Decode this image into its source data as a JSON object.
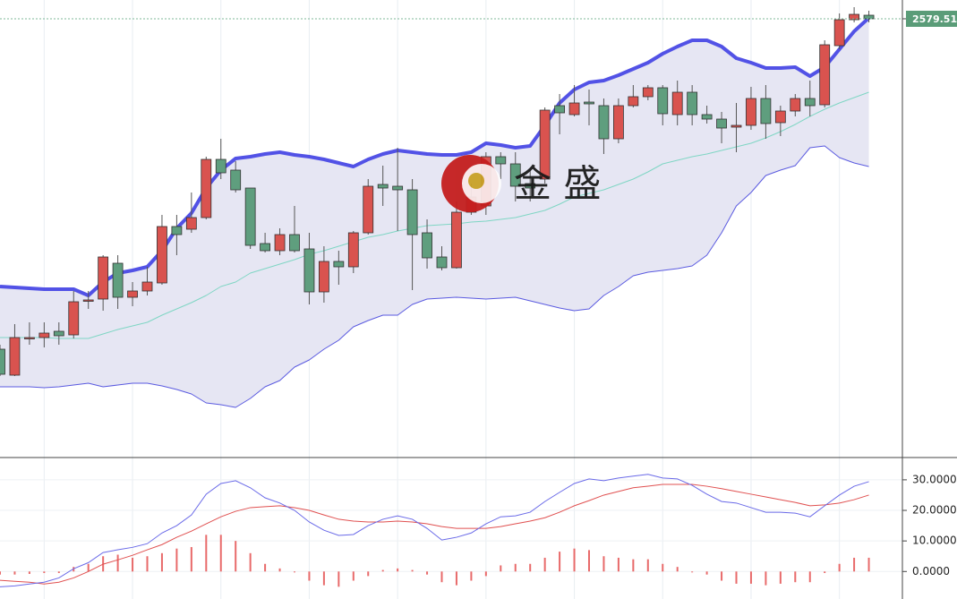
{
  "chart_data": [
    {
      "type": "candlestick",
      "open": [
        2395,
        2380.5,
        2401,
        2401.5,
        2405,
        2403,
        2422,
        2423,
        2443,
        2424,
        2427.5,
        2432,
        2463.5,
        2462,
        2468.5,
        2501,
        2495,
        2485,
        2454,
        2450,
        2459,
        2451,
        2427,
        2444,
        2441,
        2460,
        2487,
        2486,
        2484,
        2460,
        2446.5,
        2440.5,
        2471.5,
        2475,
        2502.5,
        2498.5,
        2487.5,
        2490,
        2531,
        2526,
        2533,
        2531,
        2512.5,
        2531,
        2536,
        2541,
        2526,
        2538.5,
        2526,
        2523.5,
        2519,
        2520,
        2535,
        2521.5,
        2528,
        2535,
        2531.5,
        2564.5,
        2579,
        2581.5
      ],
      "high": [
        2397.5,
        2409,
        2410,
        2410,
        2410,
        2427.5,
        2427.5,
        2447.5,
        2447.5,
        2432.5,
        2441,
        2470,
        2470,
        2482.5,
        2502.5,
        2512.5,
        2500,
        2485,
        2460,
        2462.5,
        2475,
        2460,
        2452.5,
        2450,
        2461,
        2490,
        2497.5,
        2507.5,
        2490,
        2467.5,
        2452.5,
        2477.5,
        2487.5,
        2505,
        2505,
        2505,
        2495,
        2530,
        2537.5,
        2542.5,
        2540,
        2535,
        2535,
        2542.5,
        2542.5,
        2542.5,
        2545,
        2542.5,
        2531,
        2527.5,
        2532.5,
        2541.5,
        2542.5,
        2531,
        2537.5,
        2545,
        2567.5,
        2582.5,
        2586,
        2584
      ],
      "low": [
        2380,
        2380,
        2397.5,
        2396,
        2397.5,
        2401,
        2417.5,
        2416.5,
        2417.5,
        2419,
        2425,
        2431,
        2447.5,
        2460,
        2467.5,
        2490,
        2482.5,
        2451,
        2449,
        2447.5,
        2449,
        2420,
        2421,
        2431,
        2437.5,
        2459,
        2475,
        2461,
        2428,
        2440,
        2439,
        2440,
        2470,
        2470,
        2490,
        2477.5,
        2477.5,
        2487.5,
        2515,
        2525,
        2520,
        2504,
        2510,
        2530,
        2534,
        2520,
        2520,
        2520,
        2521,
        2510,
        2505,
        2517.5,
        2512.5,
        2514,
        2525,
        2525,
        2530,
        2562.5,
        2577.5,
        2577.5
      ],
      "close": [
        2381,
        2401.5,
        2401.5,
        2404,
        2402.5,
        2421.5,
        2422.5,
        2446.5,
        2424,
        2427.5,
        2432.5,
        2463.5,
        2459,
        2468.5,
        2501,
        2493.5,
        2484,
        2453,
        2450,
        2459,
        2450,
        2427,
        2444,
        2441,
        2460,
        2486,
        2485,
        2484,
        2459,
        2446,
        2440.5,
        2471.5,
        2480,
        2502.5,
        2498.5,
        2486,
        2485,
        2528.5,
        2527,
        2532.5,
        2532,
        2512.5,
        2531,
        2536,
        2541,
        2526.5,
        2538.5,
        2526,
        2523.5,
        2518.5,
        2520,
        2535,
        2521,
        2528,
        2535,
        2531,
        2565,
        2579,
        2582,
        2579.51
      ],
      "up_color": "#d9534f",
      "down_color": "#5f9e7e",
      "bands": {
        "upper": {
          "color": "#5252e6",
          "values": [
            2430,
            2429.5,
            2429,
            2428.5,
            2428.5,
            2428.5,
            2425,
            2432.5,
            2437.5,
            2439,
            2441,
            2450,
            2462.5,
            2471,
            2485,
            2495,
            2501.5,
            2502.5,
            2504,
            2505,
            2503.5,
            2502.5,
            2501,
            2499,
            2497,
            2501,
            2504,
            2506,
            2505,
            2504,
            2503.5,
            2503.5,
            2505,
            2510,
            2509,
            2507.5,
            2508.5,
            2520,
            2532.5,
            2540,
            2544,
            2545,
            2548,
            2551.5,
            2555,
            2560,
            2564,
            2567.5,
            2567.5,
            2564,
            2557.5,
            2555,
            2552,
            2552,
            2552.5,
            2547.5,
            2552.5,
            2562.5,
            2572.5,
            2580
          ]
        },
        "middle": {
          "color": "#7fd6c4",
          "values": [
            2401.5,
            2401.5,
            2401.5,
            2401.5,
            2401,
            2401,
            2401,
            2403.5,
            2406,
            2408,
            2410,
            2414,
            2417.5,
            2421,
            2425,
            2430,
            2432.5,
            2437.5,
            2440,
            2442.5,
            2445,
            2448,
            2450,
            2452.5,
            2455,
            2457.5,
            2459,
            2461,
            2462.5,
            2464,
            2464.5,
            2465,
            2466,
            2466.5,
            2467.5,
            2468.5,
            2470.5,
            2472.5,
            2476,
            2480,
            2482,
            2484,
            2487,
            2490,
            2494,
            2498.5,
            2500.5,
            2502.5,
            2504,
            2506,
            2508,
            2510,
            2513,
            2516.5,
            2520.5,
            2525,
            2529,
            2532.5,
            2535.5,
            2538.5
          ]
        },
        "lower": {
          "color": "#5a5ae0",
          "values": [
            2374,
            2374,
            2374,
            2373.5,
            2374,
            2375,
            2376,
            2374,
            2375,
            2376,
            2376,
            2374.5,
            2372.5,
            2370,
            2365,
            2364,
            2362.5,
            2367.5,
            2374,
            2377.5,
            2385,
            2389,
            2395,
            2400,
            2407.5,
            2411,
            2414,
            2414,
            2420,
            2423,
            2423.5,
            2424,
            2423.5,
            2423,
            2423.5,
            2424,
            2422,
            2420,
            2418,
            2416.5,
            2417.5,
            2425,
            2430,
            2436,
            2438,
            2439,
            2440,
            2441.5,
            2447.5,
            2460,
            2475,
            2482.5,
            2492,
            2495,
            2497.5,
            2507.5,
            2508.5,
            2502,
            2499,
            2497
          ]
        }
      },
      "ylim": [
        2335,
        2590
      ]
    },
    {
      "type": "macd",
      "macd": {
        "color": "#6a6ae8",
        "values": [
          -5.0,
          -4.7,
          -4.1,
          -3.5,
          -2.1,
          0.9,
          2.9,
          6.2,
          7.1,
          7.9,
          9.1,
          12.6,
          15.0,
          18.5,
          25.3,
          28.8,
          29.7,
          27.4,
          24.1,
          22.4,
          20.0,
          16.2,
          13.5,
          11.8,
          12.1,
          15.0,
          17.1,
          18.2,
          17.1,
          14.1,
          10.3,
          11.2,
          12.6,
          15.6,
          17.9,
          18.2,
          19.4,
          22.9,
          25.9,
          28.8,
          30.3,
          29.7,
          30.6,
          31.2,
          31.8,
          30.6,
          30.3,
          28.2,
          25.3,
          22.9,
          22.4,
          20.9,
          19.4,
          19.4,
          19.1,
          17.9,
          21.5,
          25.0,
          27.9,
          29.4
        ]
      },
      "signal": {
        "color": "#e05050",
        "values": [
          -2.9,
          -3.2,
          -3.5,
          -4.1,
          -3.5,
          -2.1,
          0,
          2.4,
          3.8,
          5.3,
          7.1,
          8.8,
          11.2,
          13.2,
          15.6,
          17.9,
          19.7,
          20.9,
          21.2,
          21.5,
          20.9,
          20.0,
          18.5,
          17.1,
          16.5,
          16.2,
          16.2,
          16.5,
          16.2,
          15.6,
          14.7,
          14.1,
          14.1,
          14.1,
          14.7,
          15.6,
          16.5,
          17.6,
          19.4,
          21.5,
          23.2,
          25.0,
          26.2,
          27.4,
          27.9,
          28.5,
          28.5,
          28.5,
          27.9,
          27.1,
          26.2,
          25.3,
          24.4,
          23.5,
          22.6,
          21.5,
          21.8,
          22.4,
          23.5,
          25.0
        ]
      },
      "histogram": {
        "color": "#e86a6a",
        "values": [
          -1,
          -1,
          -0.8,
          -0.5,
          -0.5,
          1.5,
          2.5,
          5,
          5.5,
          4.5,
          5,
          6,
          7.5,
          8,
          12,
          12,
          10,
          6,
          2.5,
          1,
          -0.3,
          -3,
          -4.5,
          -5,
          -3,
          -1.5,
          0.5,
          1,
          0.5,
          -1,
          -3.5,
          -4.5,
          -3,
          -1.5,
          2,
          2.5,
          2.5,
          4.5,
          6.5,
          7.5,
          7,
          5,
          4.5,
          4,
          4,
          2.5,
          1.5,
          -0.3,
          -1,
          -3,
          -4,
          -4,
          -4.5,
          -4,
          -3.5,
          -3.5,
          -0.5,
          2.5,
          4.5,
          4.5
        ]
      },
      "ylim": [
        -9,
        37
      ],
      "yticks": [
        {
          "value": 0,
          "label": "0.0000"
        },
        {
          "value": 10,
          "label": "10.0000"
        },
        {
          "value": 20,
          "label": "20.0000"
        },
        {
          "value": 30,
          "label": "30.0000"
        }
      ],
      "grid": true
    }
  ],
  "watermark": "金 盛"
}
